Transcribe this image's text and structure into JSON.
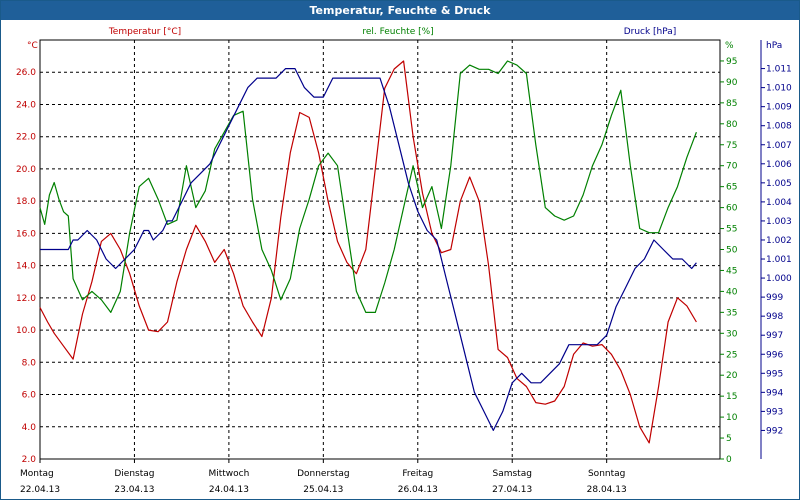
{
  "chart_data": {
    "type": "line",
    "title": "Temperatur, Feuchte & Druck",
    "x_domain": [
      0,
      7.2
    ],
    "day_ticks": [
      {
        "day": "Montag",
        "date": "22.04.13"
      },
      {
        "day": "Dienstag",
        "date": "23.04.13"
      },
      {
        "day": "Mittwoch",
        "date": "24.04.13"
      },
      {
        "day": "Donnerstag",
        "date": "25.04.13"
      },
      {
        "day": "Freitag",
        "date": "26.04.13"
      },
      {
        "day": "Samstag",
        "date": "27.04.13"
      },
      {
        "day": "Sonntag",
        "date": "28.04.13"
      }
    ],
    "axes": {
      "temperature": {
        "unit": "°C",
        "min": 2.0,
        "max": 28.0,
        "ticks": [
          "2.0",
          "4.0",
          "6.0",
          "8.0",
          "10.0",
          "12.0",
          "14.0",
          "16.0",
          "18.0",
          "20.0",
          "22.0",
          "24.0",
          "26.0"
        ]
      },
      "humidity": {
        "unit": "%",
        "min": 0,
        "max": 100,
        "ticks": [
          "0",
          "5",
          "10",
          "15",
          "20",
          "25",
          "30",
          "35",
          "40",
          "45",
          "50",
          "55",
          "60",
          "65",
          "70",
          "75",
          "80",
          "85",
          "90",
          "95"
        ]
      },
      "pressure": {
        "unit": "hPa",
        "min": 990.5,
        "max": 1012.5,
        "ticks": [
          "992",
          "993",
          "994",
          "995",
          "996",
          "997",
          "998",
          "999",
          "1.000",
          "1.001",
          "1.002",
          "1.003",
          "1.004",
          "1.005",
          "1.006",
          "1.007",
          "1.008",
          "1.009",
          "1.010",
          "1.011"
        ]
      }
    },
    "series": [
      {
        "name": "Temperatur [°C]",
        "axis": "temperature",
        "color": "#c00000",
        "x": [
          0,
          0.08,
          0.15,
          0.25,
          0.35,
          0.45,
          0.55,
          0.65,
          0.75,
          0.85,
          0.95,
          1.05,
          1.15,
          1.25,
          1.35,
          1.45,
          1.55,
          1.65,
          1.75,
          1.85,
          1.95,
          2.05,
          2.15,
          2.25,
          2.35,
          2.45,
          2.55,
          2.65,
          2.75,
          2.85,
          2.95,
          3.05,
          3.15,
          3.25,
          3.35,
          3.45,
          3.55,
          3.65,
          3.75,
          3.85,
          3.95,
          4.05,
          4.15,
          4.25,
          4.35,
          4.45,
          4.55,
          4.65,
          4.75,
          4.85,
          4.95,
          5.05,
          5.15,
          5.25,
          5.35,
          5.45,
          5.55,
          5.65,
          5.75,
          5.85,
          5.95,
          6.05,
          6.15,
          6.25,
          6.35,
          6.45,
          6.55,
          6.65,
          6.75,
          6.85,
          6.95
        ],
        "values": [
          11.4,
          10.5,
          9.8,
          9.0,
          8.2,
          11.0,
          13.0,
          15.5,
          16.0,
          15.0,
          13.5,
          11.5,
          10.0,
          9.9,
          10.5,
          13.0,
          15.0,
          16.5,
          15.5,
          14.2,
          15.0,
          13.5,
          11.5,
          10.5,
          9.6,
          12.0,
          17.0,
          21.0,
          23.5,
          23.2,
          21.0,
          18.0,
          15.5,
          14.2,
          13.5,
          15.0,
          20.0,
          25.0,
          26.2,
          26.7,
          22.0,
          18.5,
          16.0,
          14.8,
          15.0,
          18.0,
          19.5,
          18.0,
          14.0,
          8.8,
          8.3,
          7.0,
          6.5,
          5.5,
          5.4,
          5.6,
          6.5,
          8.5,
          9.2,
          9.0,
          9.1,
          8.5,
          7.5,
          6.0,
          4.0,
          3.0,
          6.5,
          10.5,
          12.0,
          11.5,
          10.5
        ]
      },
      {
        "name": "rel. Feuchte [%]",
        "axis": "humidity",
        "color": "#008000",
        "x": [
          0,
          0.05,
          0.1,
          0.15,
          0.2,
          0.25,
          0.3,
          0.35,
          0.45,
          0.55,
          0.65,
          0.75,
          0.85,
          0.95,
          1.05,
          1.15,
          1.25,
          1.35,
          1.45,
          1.55,
          1.65,
          1.75,
          1.85,
          1.95,
          2.05,
          2.15,
          2.25,
          2.35,
          2.45,
          2.55,
          2.65,
          2.75,
          2.85,
          2.95,
          3.05,
          3.15,
          3.25,
          3.35,
          3.45,
          3.55,
          3.65,
          3.75,
          3.85,
          3.95,
          4.05,
          4.15,
          4.25,
          4.35,
          4.45,
          4.55,
          4.65,
          4.75,
          4.85,
          4.95,
          5.05,
          5.15,
          5.25,
          5.35,
          5.45,
          5.55,
          5.65,
          5.75,
          5.85,
          5.95,
          6.05,
          6.15,
          6.25,
          6.35,
          6.45,
          6.55,
          6.65,
          6.75,
          6.85,
          6.95
        ],
        "values": [
          60,
          56,
          63,
          66,
          62,
          59,
          58,
          43,
          38,
          40,
          38,
          35,
          40,
          54,
          65,
          67,
          62,
          56,
          57,
          70,
          60,
          64,
          74,
          78,
          82,
          83,
          62,
          50,
          45,
          38,
          43,
          55,
          62,
          70,
          73,
          70,
          55,
          40,
          35,
          35,
          42,
          50,
          60,
          70,
          60,
          65,
          55,
          70,
          92,
          94,
          93,
          93,
          92,
          95,
          94,
          92,
          75,
          60,
          58,
          57,
          58,
          63,
          70,
          75,
          82,
          88,
          70,
          55,
          54,
          54,
          60,
          65,
          72,
          78
        ]
      },
      {
        "name": "Druck [hPa]",
        "axis": "pressure",
        "color": "#00008b",
        "x": [
          0,
          0.1,
          0.2,
          0.3,
          0.35,
          0.4,
          0.5,
          0.6,
          0.7,
          0.8,
          0.9,
          1.0,
          1.05,
          1.1,
          1.15,
          1.2,
          1.3,
          1.35,
          1.4,
          1.5,
          1.6,
          1.7,
          1.8,
          1.9,
          2.0,
          2.1,
          2.2,
          2.3,
          2.4,
          2.5,
          2.6,
          2.7,
          2.8,
          2.9,
          3.0,
          3.1,
          3.2,
          3.3,
          3.4,
          3.5,
          3.6,
          3.7,
          3.8,
          3.9,
          4.0,
          4.1,
          4.2,
          4.3,
          4.4,
          4.5,
          4.6,
          4.7,
          4.8,
          4.9,
          5.0,
          5.1,
          5.2,
          5.3,
          5.4,
          5.5,
          5.6,
          5.7,
          5.8,
          5.9,
          6.0,
          6.1,
          6.2,
          6.3,
          6.4,
          6.5,
          6.6,
          6.7,
          6.8,
          6.9,
          6.95
        ],
        "values": [
          1001.5,
          1001.5,
          1001.5,
          1001.5,
          1002.0,
          1002.0,
          1002.5,
          1002.0,
          1001.0,
          1000.5,
          1001.0,
          1001.5,
          1002.0,
          1002.5,
          1002.5,
          1002.0,
          1002.5,
          1003.0,
          1003.0,
          1004.0,
          1005.0,
          1005.5,
          1006.0,
          1007.0,
          1008.0,
          1009.0,
          1010.0,
          1010.5,
          1010.5,
          1010.5,
          1011.0,
          1011.0,
          1010.0,
          1009.5,
          1009.5,
          1010.5,
          1010.5,
          1010.5,
          1010.5,
          1010.5,
          1010.5,
          1009.0,
          1007.0,
          1005.0,
          1003.5,
          1002.5,
          1002.0,
          1000.0,
          998.0,
          996.0,
          994.0,
          993.0,
          992.0,
          993.0,
          994.5,
          995.0,
          994.5,
          994.5,
          995.0,
          995.5,
          996.5,
          996.5,
          996.5,
          996.5,
          997.0,
          998.5,
          999.5,
          1000.5,
          1001.0,
          1002.0,
          1001.5,
          1001.0,
          1001.0,
          1000.5,
          1000.8
        ]
      }
    ]
  }
}
